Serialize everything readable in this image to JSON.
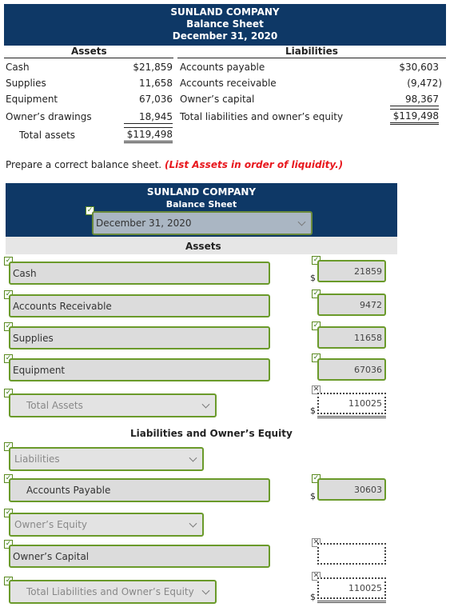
{
  "given": {
    "company": "SUNLAND COMPANY",
    "statement": "Balance Sheet",
    "date": "December 31, 2020",
    "assets_header": "Assets",
    "liabilities_header": "Liabilities",
    "left_rows": [
      {
        "label": "Cash",
        "value": "$21,859"
      },
      {
        "label": "Supplies",
        "value": "11,658"
      },
      {
        "label": "Equipment",
        "value": "67,036"
      },
      {
        "label": "Owner’s drawings",
        "value": "18,945"
      },
      {
        "label": "Total assets",
        "value": "$119,498"
      }
    ],
    "right_rows": [
      {
        "label": "Accounts payable",
        "value": "$30,603"
      },
      {
        "label": "Accounts receivable",
        "value": "(9,472)"
      },
      {
        "label": "Owner’s capital",
        "value": "98,367"
      },
      {
        "label": "Total liabilities and owner’s equity",
        "value": "$119,498"
      }
    ]
  },
  "instruction": {
    "text": "Prepare a correct balance sheet.",
    "note": "(List Assets in order of liquidity.)",
    "note_color": "#e8171d"
  },
  "answer": {
    "company": "SUNLAND COMPANY",
    "statement": "Balance Sheet",
    "date_select": "December 31, 2020",
    "assets_header": "Assets",
    "asset_rows": [
      {
        "label": "Cash",
        "value": "21859",
        "dollar": "$"
      },
      {
        "label": "Accounts Receivable",
        "value": "9472"
      },
      {
        "label": "Supplies",
        "value": "11658"
      },
      {
        "label": "Equipment",
        "value": "67036"
      }
    ],
    "total_assets": {
      "label": "Total Assets",
      "value": "110025",
      "dollar": "$"
    },
    "le_header": "Liabilities and Owner’s Equity",
    "liabilities_select": "Liabilities",
    "accounts_payable": {
      "label": "Accounts Payable",
      "value": "30603",
      "dollar": "$"
    },
    "owners_equity_select": "Owner’s Equity",
    "owners_capital": {
      "label": "Owner’s Capital",
      "value": ""
    },
    "total_le": {
      "label": "Total Liabilities and Owner’s Equity",
      "value": "110025",
      "dollar": "$"
    }
  },
  "icons": {
    "check": "checkmark-icon",
    "cross": "cross-icon",
    "chevron": "chevron-down-icon"
  },
  "colors": {
    "header_bg": "#0e3866",
    "correct_border": "#6a9a2a",
    "field_bg": "#dcdcdc"
  }
}
